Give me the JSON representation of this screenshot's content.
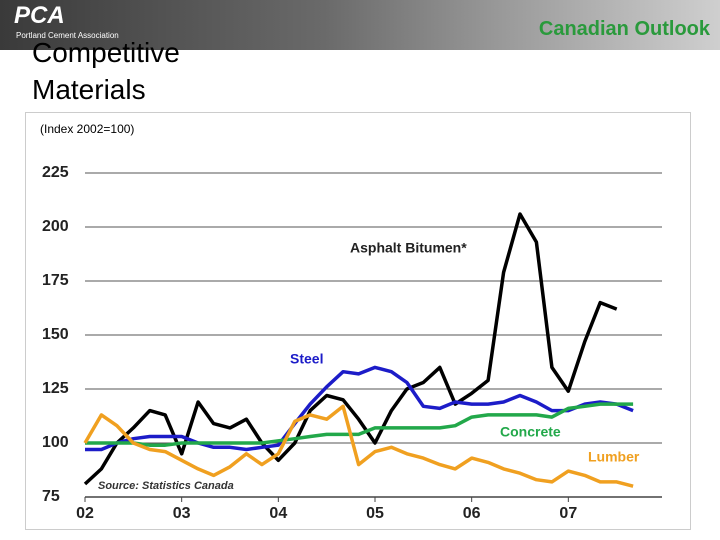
{
  "header": {
    "logo": "PCA",
    "organization": "Portland Cement Association",
    "section": "Canadian Outlook"
  },
  "chart_data": {
    "type": "line",
    "title": "Competitive Materials",
    "subtitle": "(Index 2002=100)",
    "source": "Source: Statistics Canada",
    "x": [
      2002,
      2002.17,
      2002.33,
      2002.5,
      2002.67,
      2002.83,
      2003,
      2003.17,
      2003.33,
      2003.5,
      2003.67,
      2003.83,
      2004,
      2004.17,
      2004.33,
      2004.5,
      2004.67,
      2004.83,
      2005,
      2005.17,
      2005.33,
      2005.5,
      2005.67,
      2005.83,
      2006,
      2006.17,
      2006.33,
      2006.5,
      2006.67,
      2006.83,
      2007,
      2007.17,
      2007.33,
      2007.5,
      2007.67
    ],
    "xlim": [
      2002,
      2008
    ],
    "xticks": [
      {
        "value": 2002,
        "label": "02"
      },
      {
        "value": 2003,
        "label": "03"
      },
      {
        "value": 2004,
        "label": "04"
      },
      {
        "value": 2005,
        "label": "05"
      },
      {
        "value": 2006,
        "label": "06"
      },
      {
        "value": 2007,
        "label": "07"
      }
    ],
    "ylim": [
      75,
      225
    ],
    "yticks": [
      75,
      100,
      125,
      150,
      175,
      200,
      225
    ],
    "grid": true,
    "series": [
      {
        "name": "Asphalt Bitumen*",
        "color": "#000000",
        "values": [
          81,
          88,
          100,
          107,
          115,
          113,
          95,
          119,
          109,
          107,
          111,
          100,
          92,
          100,
          115,
          122,
          120,
          111,
          100,
          115,
          125,
          128,
          135,
          118,
          123,
          129,
          179,
          206,
          193,
          135,
          124,
          147,
          165,
          162,
          null
        ]
      },
      {
        "name": "Steel",
        "color": "#1c1cc8",
        "values": [
          97,
          97,
          100,
          102,
          103,
          103,
          103,
          100,
          98,
          98,
          97,
          98,
          99,
          109,
          118,
          126,
          133,
          132,
          135,
          133,
          128,
          117,
          116,
          119,
          118,
          118,
          119,
          122,
          119,
          115,
          115,
          118,
          119,
          118,
          115
        ]
      },
      {
        "name": "Concrete",
        "color": "#22a84a",
        "values": [
          100,
          100,
          100,
          100,
          99,
          99,
          100,
          100,
          100,
          100,
          100,
          100,
          101,
          102,
          103,
          104,
          104,
          104,
          107,
          107,
          107,
          107,
          107,
          108,
          112,
          113,
          113,
          113,
          113,
          112,
          116,
          117,
          118,
          118,
          118
        ]
      },
      {
        "name": "Lumber",
        "color": "#f0a020",
        "values": [
          100,
          113,
          108,
          100,
          97,
          96,
          92,
          88,
          85,
          89,
          95,
          90,
          95,
          110,
          113,
          111,
          117,
          90,
          96,
          98,
          95,
          93,
          90,
          88,
          93,
          91,
          88,
          86,
          83,
          82,
          87,
          85,
          82,
          82,
          80
        ]
      }
    ]
  }
}
